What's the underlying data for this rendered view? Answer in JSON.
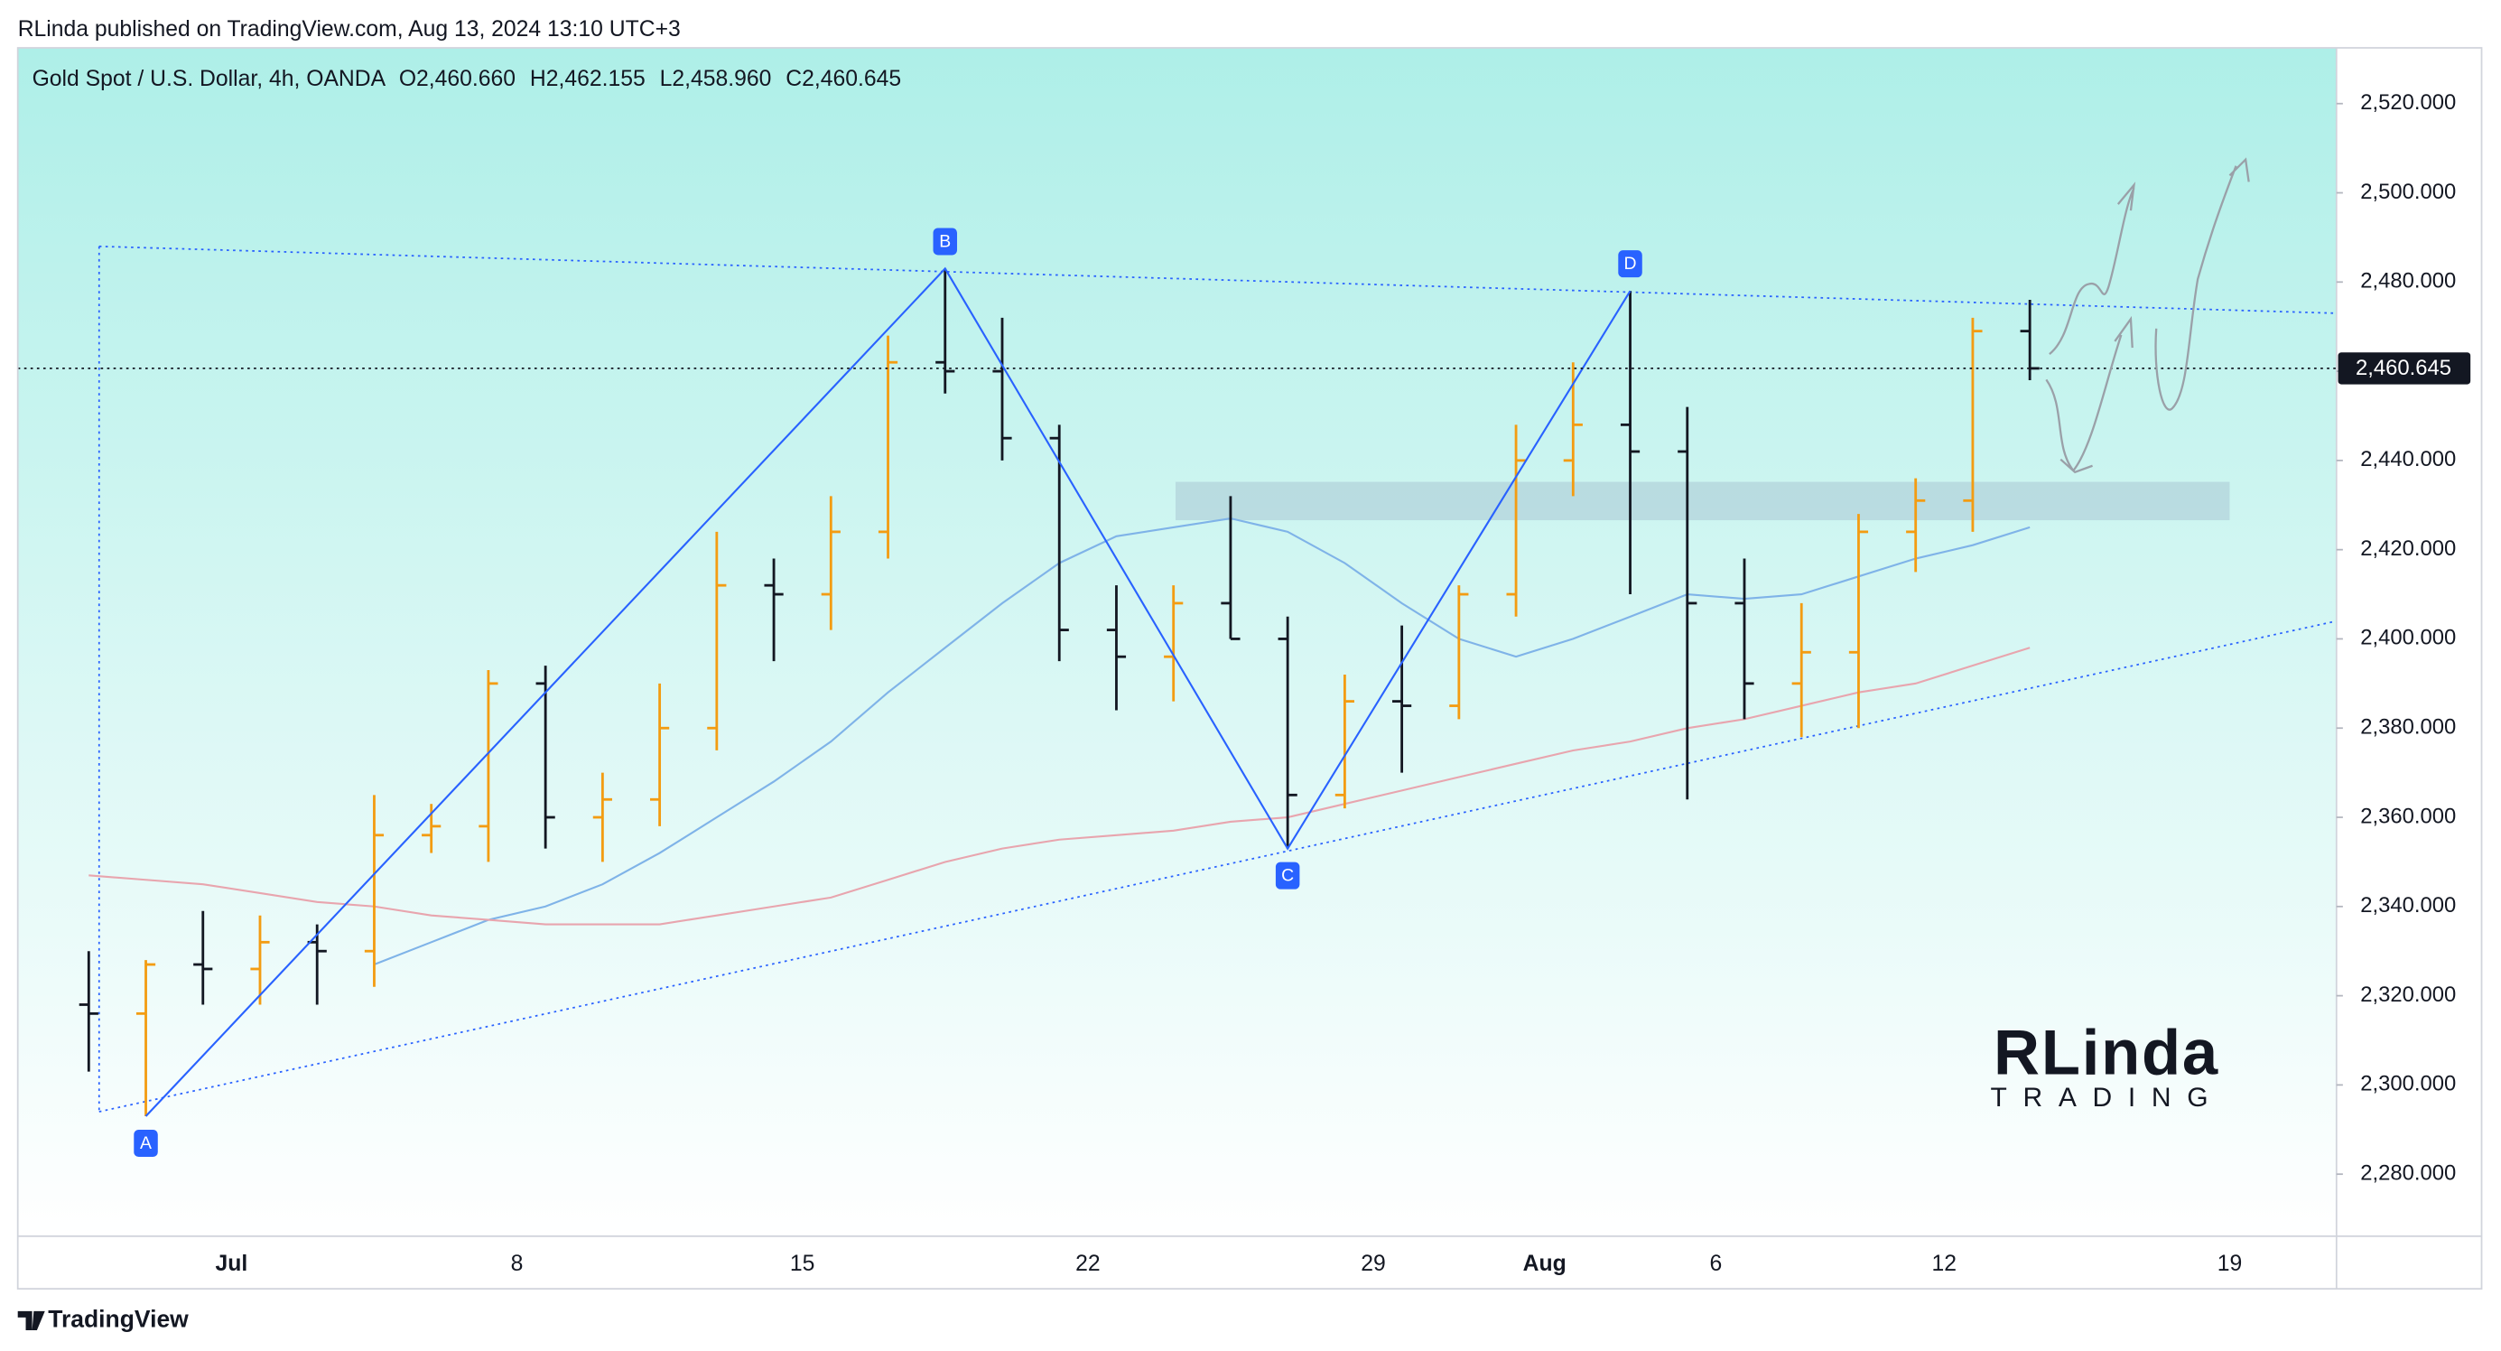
{
  "header": {
    "published": "RLinda published on TradingView.com, Aug 13, 2024 13:10 UTC+3"
  },
  "chart_data": {
    "type": "ohlc",
    "title": "Gold Spot / U.S. Dollar, 4h, OANDA",
    "ohlc_legend": [
      {
        "key": "O",
        "value": "2,460.660"
      },
      {
        "key": "H",
        "value": "2,462.155"
      },
      {
        "key": "L",
        "value": "2,458.960"
      },
      {
        "key": "C",
        "value": "2,460.645"
      }
    ],
    "categories": [
      null,
      null,
      null,
      "Jul",
      null,
      null,
      null,
      null,
      "8",
      null,
      null,
      null,
      null,
      "15",
      null,
      null,
      null,
      null,
      "22",
      null,
      null,
      null,
      null,
      "29",
      null,
      null,
      "Aug",
      null,
      null,
      "6",
      null,
      null,
      null,
      "12",
      null,
      null,
      null,
      null,
      "19"
    ],
    "open": [
      2318,
      2316,
      2327,
      2326,
      2332,
      2330,
      2356,
      2358,
      2390,
      2360,
      2364,
      2380,
      2412,
      2410,
      2424,
      2462,
      2460,
      2445,
      2402,
      2396,
      2408,
      2400,
      2365,
      2386,
      2385,
      2410,
      2440,
      2448,
      2442,
      2408,
      2390,
      2397,
      2424,
      2431,
      2469,
      null,
      null,
      null,
      null
    ],
    "high": [
      2330,
      2328,
      2339,
      2338,
      2336,
      2365,
      2363,
      2393,
      2394,
      2370,
      2390,
      2424,
      2418,
      2432,
      2468,
      2483,
      2472,
      2448,
      2412,
      2412,
      2432,
      2405,
      2392,
      2403,
      2412,
      2448,
      2462,
      2478,
      2452,
      2418,
      2408,
      2428,
      2436,
      2472,
      2476,
      null,
      null,
      null,
      null
    ],
    "low": [
      2303,
      2293,
      2318,
      2318,
      2318,
      2322,
      2352,
      2350,
      2353,
      2350,
      2358,
      2375,
      2395,
      2402,
      2418,
      2455,
      2440,
      2395,
      2384,
      2386,
      2400,
      2353,
      2362,
      2370,
      2382,
      2405,
      2432,
      2410,
      2364,
      2382,
      2378,
      2380,
      2415,
      2424,
      2458,
      null,
      null,
      null,
      null
    ],
    "close": [
      2316,
      2327,
      2326,
      2332,
      2330,
      2356,
      2358,
      2390,
      2360,
      2364,
      2380,
      2412,
      2410,
      2424,
      2462,
      2460,
      2445,
      2402,
      2396,
      2408,
      2400,
      2365,
      2386,
      2385,
      2410,
      2440,
      2448,
      2442,
      2408,
      2390,
      2397,
      2424,
      2431,
      2469,
      2460.645,
      null,
      null,
      null,
      null
    ],
    "up_color": "#f39c12",
    "down_color": "#131722",
    "ma_fast": {
      "color": "#7fb3e8",
      "values": [
        null,
        null,
        null,
        null,
        null,
        2327,
        2332,
        2337,
        2340,
        2345,
        2352,
        2360,
        2368,
        2377,
        2388,
        2398,
        2408,
        2417,
        2423,
        2425,
        2427,
        2424,
        2417,
        2408,
        2400,
        2396,
        2400,
        2405,
        2410,
        2409,
        2410,
        2414,
        2418,
        2421,
        2425,
        null,
        null,
        null,
        null
      ]
    },
    "ma_slow": {
      "color": "#e8a5ae",
      "values": [
        2347,
        2346,
        2345,
        2343,
        2341,
        2340,
        2338,
        2337,
        2336,
        2336,
        2336,
        2338,
        2340,
        2342,
        2346,
        2350,
        2353,
        2355,
        2356,
        2357,
        2359,
        2360,
        2363,
        2366,
        2369,
        2372,
        2375,
        2377,
        2380,
        2382,
        2385,
        2388,
        2390,
        2394,
        2398,
        null,
        null,
        null,
        null
      ]
    },
    "pattern_color": "#2962ff",
    "pattern_points": [
      {
        "label": "A",
        "bar": 1,
        "price": 2293
      },
      {
        "label": "B",
        "bar": 15,
        "price": 2483
      },
      {
        "label": "C",
        "bar": 21,
        "price": 2353
      },
      {
        "label": "D",
        "bar": 27,
        "price": 2478
      }
    ],
    "trendlines": {
      "upper": [
        2488,
        2473
      ],
      "lower": [
        2294,
        2404
      ]
    },
    "zone": [
      2426.6,
      2435.2
    ],
    "last_price": {
      "value": 2460.645,
      "label": "2,460.645"
    },
    "ylim": [
      2266.1,
      2532.5
    ],
    "yticks": [
      {
        "value": 2280,
        "label": "2,280.000"
      },
      {
        "value": 2300,
        "label": "2,300.000"
      },
      {
        "value": 2320,
        "label": "2,320.000"
      },
      {
        "value": 2340,
        "label": "2,340.000"
      },
      {
        "value": 2360,
        "label": "2,360.000"
      },
      {
        "value": 2380,
        "label": "2,380.000"
      },
      {
        "value": 2400,
        "label": "2,400.000"
      },
      {
        "value": 2420,
        "label": "2,420.000"
      },
      {
        "value": 2440,
        "label": "2,440.000"
      },
      {
        "value": 2460,
        "label": "2,460.000"
      },
      {
        "value": 2480,
        "label": "2,480.000"
      },
      {
        "value": 2500,
        "label": "2,500.000"
      },
      {
        "value": 2520,
        "label": "2,520.000"
      }
    ]
  },
  "watermark": {
    "line1": "RLinda",
    "line2": "TRADING"
  },
  "footer": {
    "brand": "TradingView"
  }
}
